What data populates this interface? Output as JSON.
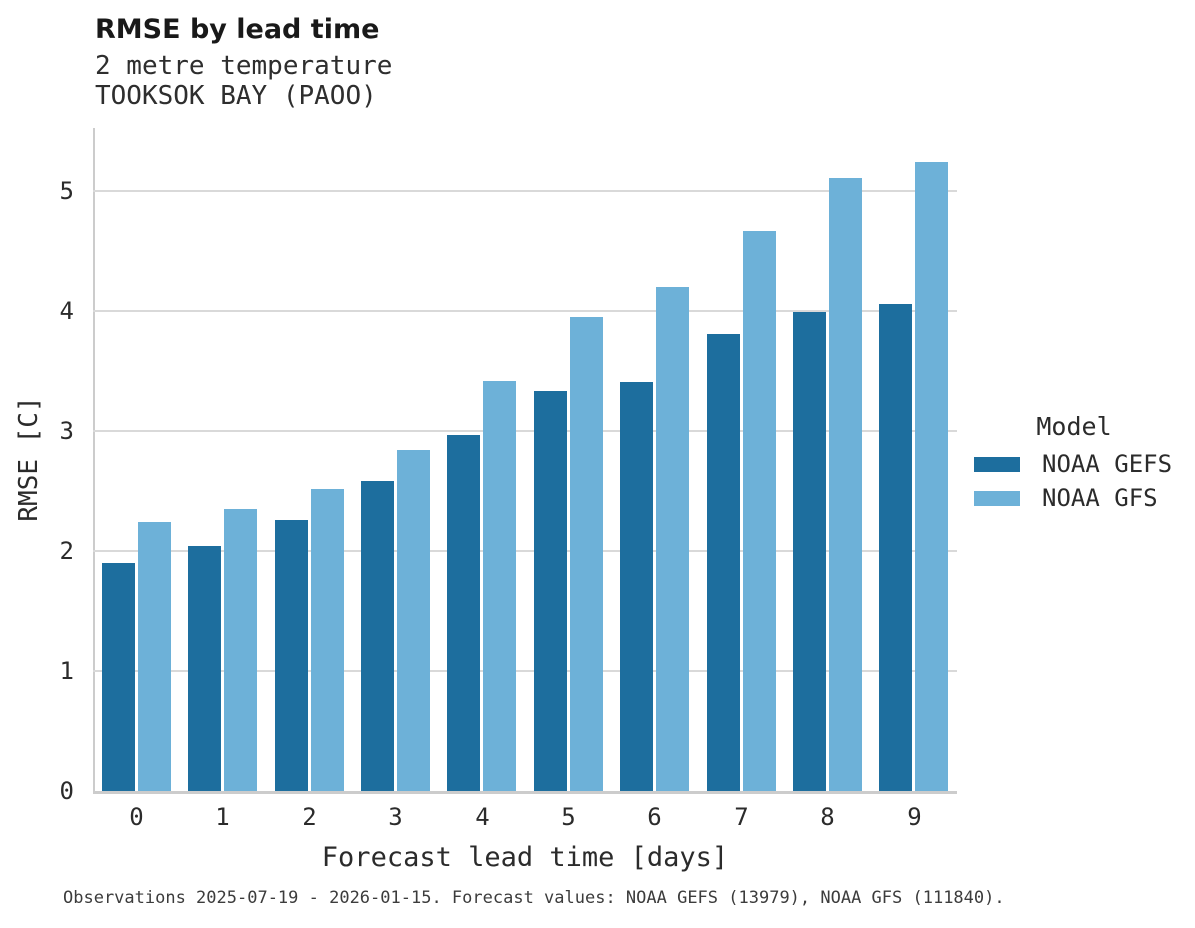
{
  "header": {
    "title": "RMSE by lead time",
    "subtitle_variable": "2 metre temperature",
    "subtitle_station": "TOOKSOK BAY (PAOO)"
  },
  "legend": {
    "title": "Model",
    "items": [
      {
        "label": "NOAA GEFS",
        "color": "#1d6e9e"
      },
      {
        "label": "NOAA GFS",
        "color": "#6db1d8"
      }
    ]
  },
  "footer": {
    "text": "Observations 2025-07-19 - 2026-01-15. Forecast values: NOAA GEFS (13979), NOAA GFS (111840)."
  },
  "chart_data": {
    "type": "bar",
    "title": "RMSE by lead time",
    "subtitle": [
      "2 metre temperature",
      "TOOKSOK BAY (PAOO)"
    ],
    "xlabel": "Forecast lead time [days]",
    "ylabel": "RMSE [C]",
    "categories": [
      "0",
      "1",
      "2",
      "3",
      "4",
      "5",
      "6",
      "7",
      "8",
      "9"
    ],
    "series": [
      {
        "name": "NOAA GEFS",
        "color": "#1d6e9e",
        "values": [
          1.9,
          2.04,
          2.26,
          2.58,
          2.97,
          3.33,
          3.41,
          3.81,
          3.99,
          4.06
        ]
      },
      {
        "name": "NOAA GFS",
        "color": "#6db1d8",
        "values": [
          2.24,
          2.35,
          2.52,
          2.84,
          3.42,
          3.95,
          4.2,
          4.67,
          5.11,
          5.24
        ]
      }
    ],
    "ylim": [
      0,
      5.525
    ],
    "yticks": [
      0,
      1,
      2,
      3,
      4,
      5
    ],
    "grid": true,
    "legend_position": "right",
    "caption": "Observations 2025-07-19 - 2026-01-15. Forecast values: NOAA GEFS (13979), NOAA GFS (111840)."
  }
}
